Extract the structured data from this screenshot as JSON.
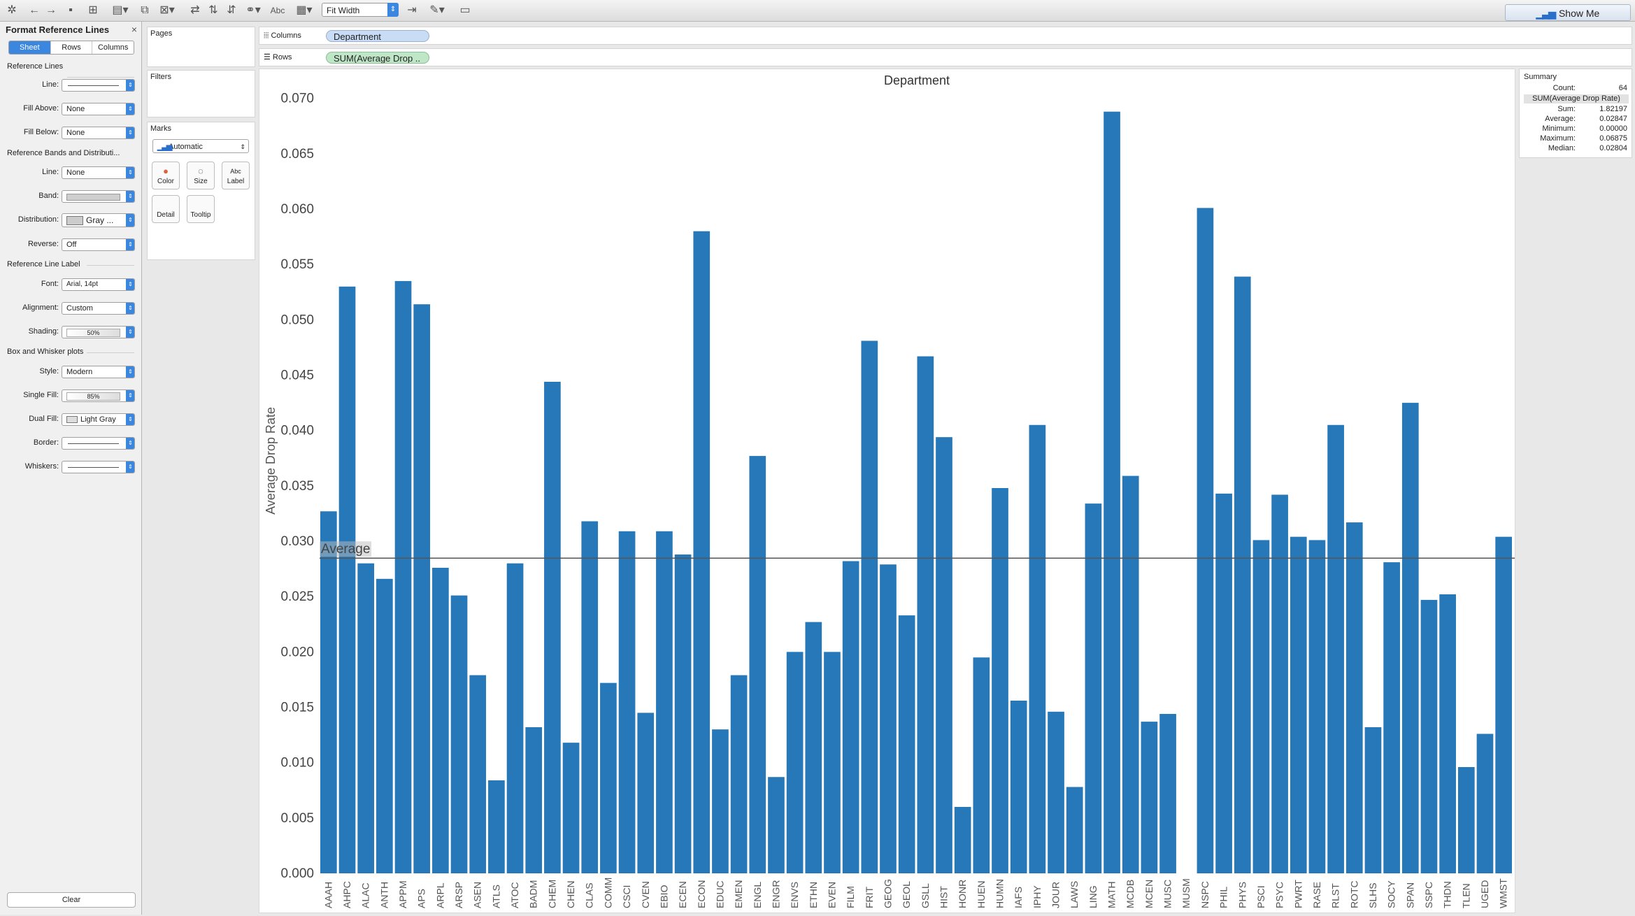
{
  "toolbar": {
    "fit_label": "Fit Width",
    "abc_label": "Abc",
    "show_me_label": "Show Me"
  },
  "format_panel": {
    "title": "Format Reference Lines",
    "tabs": [
      "Sheet",
      "Rows",
      "Columns"
    ],
    "section_reference_lines": "Reference Lines",
    "line_label": "Line:",
    "fill_above_label": "Fill Above:",
    "fill_above_value": "None",
    "fill_below_label": "Fill Below:",
    "fill_below_value": "None",
    "section_bands": "Reference Bands and Distributi...",
    "band_line_label": "Line:",
    "band_line_value": "None",
    "band_label": "Band:",
    "distribution_label": "Distribution:",
    "distribution_value": "Gray ...",
    "reverse_label": "Reverse:",
    "reverse_value": "Off",
    "section_ref_label": "Reference Line Label",
    "font_label": "Font:",
    "font_value": "Arial, 14pt",
    "alignment_label": "Alignment:",
    "alignment_value": "Custom",
    "shading_label": "Shading:",
    "shading_value": "50%",
    "section_box": "Box and Whisker plots",
    "style_label": "Style:",
    "style_value": "Modern",
    "single_fill_label": "Single Fill:",
    "single_fill_value": "85%",
    "dual_fill_label": "Dual Fill:",
    "dual_fill_value": "Light Gray",
    "border_label": "Border:",
    "whiskers_label": "Whiskers:",
    "clear_label": "Clear"
  },
  "shelves": {
    "pages_label": "Pages",
    "filters_label": "Filters",
    "marks_label": "Marks",
    "marks_type": "Automatic",
    "mark_buttons": [
      "Color",
      "Size",
      "Label",
      "Detail",
      "Tooltip"
    ],
    "columns_label": "Columns",
    "columns_pill": "Department",
    "rows_label": "Rows",
    "rows_pill": "SUM(Average Drop .."
  },
  "summary": {
    "title": "Summary",
    "count_label": "Count:",
    "count_value": "64",
    "field": "SUM(Average Drop Rate)",
    "sum_label": "Sum:",
    "sum_value": "1.82197",
    "average_label": "Average:",
    "average_value": "0.02847",
    "minimum_label": "Minimum:",
    "minimum_value": "0.00000",
    "maximum_label": "Maximum:",
    "maximum_value": "0.06875",
    "median_label": "Median:",
    "median_value": "0.02804"
  },
  "colors": {
    "bar": "#2678b8",
    "accent": "#3b87e0",
    "ref_line": "#555555"
  },
  "chart_data": {
    "type": "bar",
    "title": "Department",
    "ylabel": "Average Drop Rate",
    "xlabel": "",
    "ylim": [
      0,
      0.072
    ],
    "yticks": [
      "0.000",
      "0.005",
      "0.010",
      "0.015",
      "0.020",
      "0.025",
      "0.030",
      "0.035",
      "0.040",
      "0.045",
      "0.050",
      "0.055",
      "0.060",
      "0.065",
      "0.070"
    ],
    "reference_line": {
      "label": "Average",
      "value": 0.02847
    },
    "categories": [
      "AAAH",
      "AHPC",
      "ALAC",
      "ANTH",
      "APPM",
      "APS",
      "ARPL",
      "ARSP",
      "ASEN",
      "ATLS",
      "ATOC",
      "BADM",
      "CHEM",
      "CHEN",
      "CLAS",
      "COMM",
      "CSCI",
      "CVEN",
      "EBIO",
      "ECEN",
      "ECON",
      "EDUC",
      "EMEN",
      "ENGL",
      "ENGR",
      "ENVS",
      "ETHN",
      "EVEN",
      "FILM",
      "FRIT",
      "GEOG",
      "GEOL",
      "GSLL",
      "HIST",
      "HONR",
      "HUEN",
      "HUMN",
      "IAFS",
      "IPHY",
      "JOUR",
      "LAWS",
      "LING",
      "MATH",
      "MCDB",
      "MCEN",
      "MUSC",
      "MUSM",
      "NSPC",
      "PHIL",
      "PHYS",
      "PSCI",
      "PSYC",
      "PWRT",
      "RASE",
      "RLST",
      "ROTC",
      "SLHS",
      "SOCY",
      "SPAN",
      "SSPC",
      "THDN",
      "TLEN",
      "UGED",
      "WMST"
    ],
    "values": [
      0.0327,
      0.053,
      0.028,
      0.0266,
      0.0535,
      0.0514,
      0.0276,
      0.0251,
      0.0179,
      0.0084,
      0.028,
      0.0132,
      0.0444,
      0.0118,
      0.0318,
      0.0172,
      0.0309,
      0.0145,
      0.0309,
      0.0288,
      0.058,
      0.013,
      0.0179,
      0.0377,
      0.0087,
      0.02,
      0.0227,
      0.02,
      0.0282,
      0.0481,
      0.0279,
      0.0233,
      0.0467,
      0.0394,
      0.006,
      0.0195,
      0.0348,
      0.0156,
      0.0405,
      0.0146,
      0.0078,
      0.0334,
      0.0688,
      0.0359,
      0.0137,
      0.0144,
      0.0,
      0.0601,
      0.0343,
      0.0539,
      0.0301,
      0.0342,
      0.0304,
      0.0301,
      0.0405,
      0.0317,
      0.0132,
      0.0281,
      0.0425,
      0.0247,
      0.0252,
      0.0096,
      0.0126,
      0.0304
    ]
  }
}
